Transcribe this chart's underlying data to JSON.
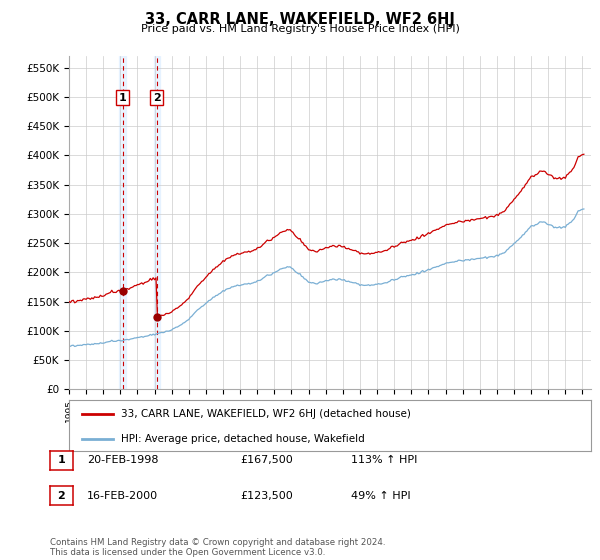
{
  "title": "33, CARR LANE, WAKEFIELD, WF2 6HJ",
  "subtitle": "Price paid vs. HM Land Registry's House Price Index (HPI)",
  "ylabel_ticks": [
    "£0",
    "£50K",
    "£100K",
    "£150K",
    "£200K",
    "£250K",
    "£300K",
    "£350K",
    "£400K",
    "£450K",
    "£500K",
    "£550K"
  ],
  "ytick_values": [
    0,
    50000,
    100000,
    150000,
    200000,
    250000,
    300000,
    350000,
    400000,
    450000,
    500000,
    550000
  ],
  "ylim": [
    0,
    570000
  ],
  "xlim_start": 1995.0,
  "xlim_end": 2025.5,
  "sale1_date": 1998.13,
  "sale1_price": 167500,
  "sale2_date": 2000.13,
  "sale2_price": 123500,
  "red_line_color": "#cc0000",
  "blue_line_color": "#7aafd4",
  "marker_color": "#990000",
  "vline_color": "#cc0000",
  "shade_color": "#ddeeff",
  "box_color": "#cc0000",
  "legend_label_red": "33, CARR LANE, WAKEFIELD, WF2 6HJ (detached house)",
  "legend_label_blue": "HPI: Average price, detached house, Wakefield",
  "table_row1": [
    "1",
    "20-FEB-1998",
    "£167,500",
    "113% ↑ HPI"
  ],
  "table_row2": [
    "2",
    "16-FEB-2000",
    "£123,500",
    "49% ↑ HPI"
  ],
  "footnote": "Contains HM Land Registry data © Crown copyright and database right 2024.\nThis data is licensed under the Open Government Licence v3.0.",
  "background_color": "#ffffff",
  "grid_color": "#cccccc"
}
